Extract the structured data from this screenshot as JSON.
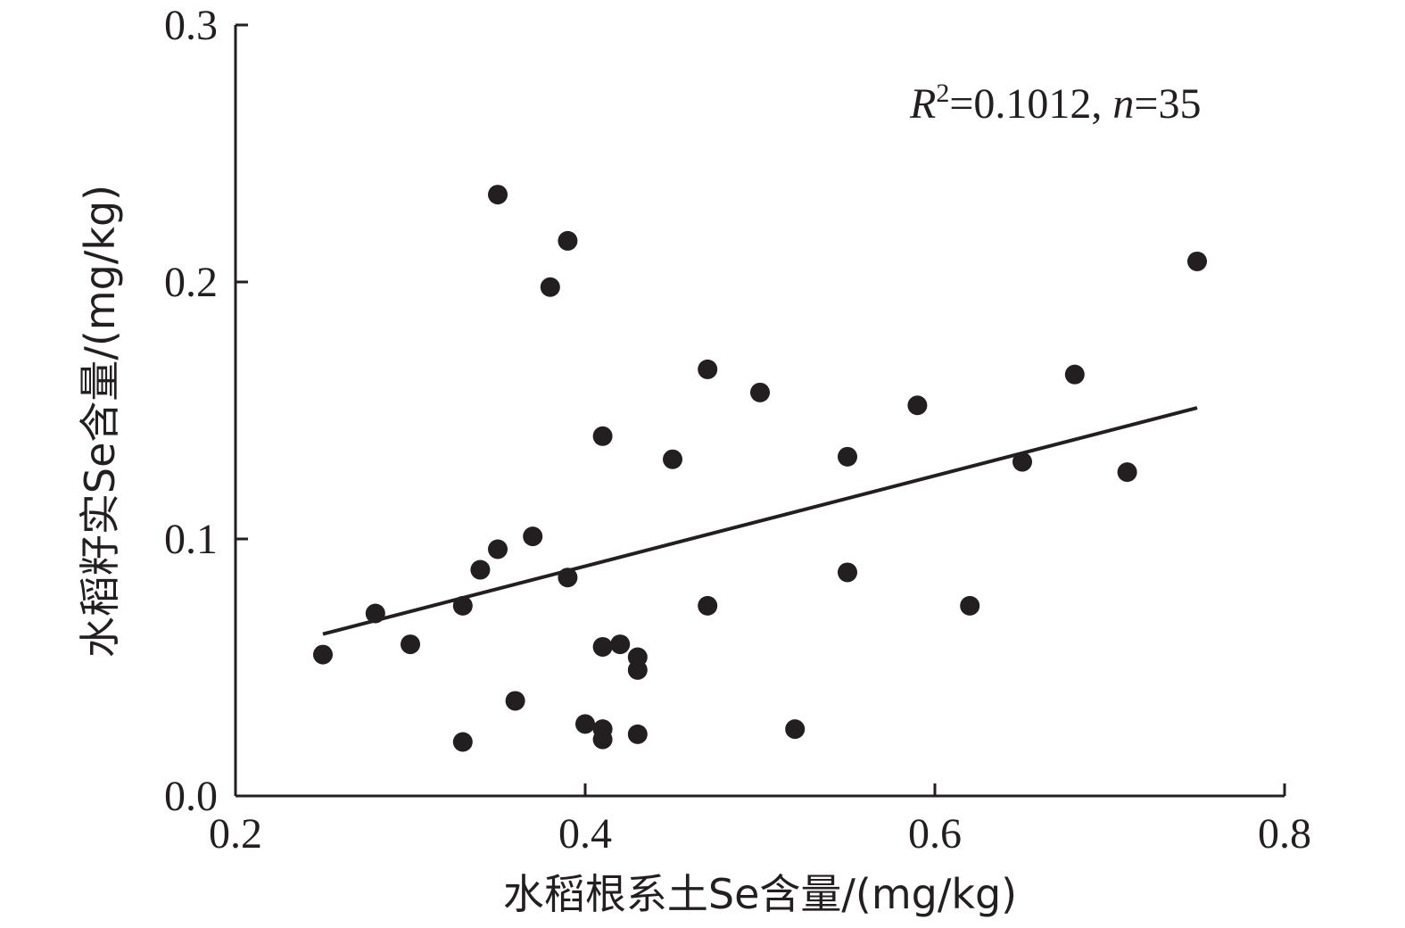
{
  "chart_data": {
    "type": "scatter",
    "xlabel": "水稻根系土Se含量/(mg/kg)",
    "ylabel": "水稻籽实Se含量/(mg/kg)",
    "xlim": [
      0.2,
      0.8
    ],
    "ylim": [
      0.0,
      0.3
    ],
    "xticks": [
      "0.2",
      "0.4",
      "0.6",
      "0.8"
    ],
    "yticks": [
      "0.0",
      "0.1",
      "0.2",
      "0.3"
    ],
    "grid": false,
    "annotation": {
      "r_symbol": "R",
      "r_exp": "2",
      "r_value": "=0.1012, ",
      "n_symbol": "n",
      "n_value": "=35"
    },
    "points": [
      {
        "x": 0.25,
        "y": 0.055
      },
      {
        "x": 0.28,
        "y": 0.071
      },
      {
        "x": 0.3,
        "y": 0.059
      },
      {
        "x": 0.33,
        "y": 0.074
      },
      {
        "x": 0.33,
        "y": 0.021
      },
      {
        "x": 0.34,
        "y": 0.088
      },
      {
        "x": 0.35,
        "y": 0.234
      },
      {
        "x": 0.35,
        "y": 0.096
      },
      {
        "x": 0.36,
        "y": 0.037
      },
      {
        "x": 0.37,
        "y": 0.101
      },
      {
        "x": 0.38,
        "y": 0.198
      },
      {
        "x": 0.39,
        "y": 0.216
      },
      {
        "x": 0.39,
        "y": 0.085
      },
      {
        "x": 0.4,
        "y": 0.028
      },
      {
        "x": 0.41,
        "y": 0.14
      },
      {
        "x": 0.41,
        "y": 0.058
      },
      {
        "x": 0.41,
        "y": 0.026
      },
      {
        "x": 0.41,
        "y": 0.022
      },
      {
        "x": 0.42,
        "y": 0.059
      },
      {
        "x": 0.43,
        "y": 0.054
      },
      {
        "x": 0.43,
        "y": 0.049
      },
      {
        "x": 0.43,
        "y": 0.024
      },
      {
        "x": 0.45,
        "y": 0.131
      },
      {
        "x": 0.47,
        "y": 0.166
      },
      {
        "x": 0.47,
        "y": 0.074
      },
      {
        "x": 0.5,
        "y": 0.157
      },
      {
        "x": 0.52,
        "y": 0.026
      },
      {
        "x": 0.55,
        "y": 0.132
      },
      {
        "x": 0.55,
        "y": 0.087
      },
      {
        "x": 0.59,
        "y": 0.152
      },
      {
        "x": 0.62,
        "y": 0.074
      },
      {
        "x": 0.65,
        "y": 0.13
      },
      {
        "x": 0.68,
        "y": 0.164
      },
      {
        "x": 0.71,
        "y": 0.126
      },
      {
        "x": 0.75,
        "y": 0.208
      }
    ],
    "fit_line": {
      "x": [
        0.25,
        0.75
      ],
      "y": [
        0.063,
        0.151
      ]
    }
  }
}
